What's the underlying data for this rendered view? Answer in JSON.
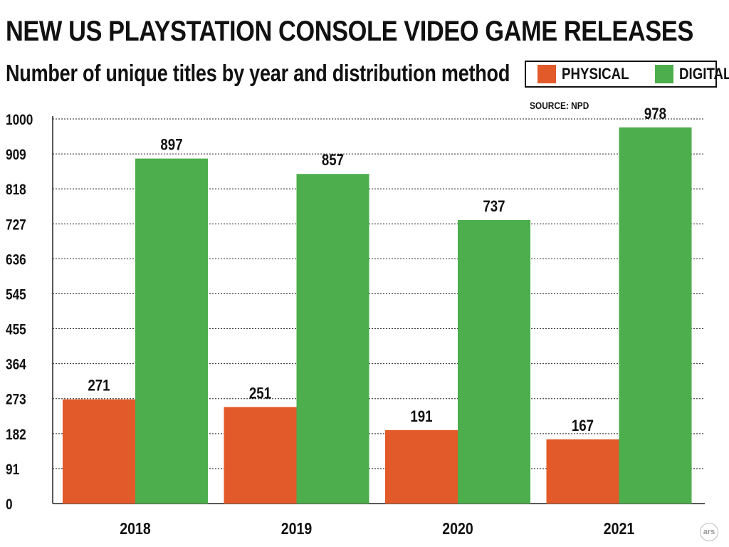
{
  "header": {
    "title": "NEW US PLAYSTATION CONSOLE VIDEO GAME RELEASES",
    "subtitle": "Number of unique titles by year and distribution method",
    "source": "SOURCE: NPD"
  },
  "branding": {
    "watermark": "ars"
  },
  "colors": {
    "physical": "#e35a2a",
    "digital": "#4cae4c",
    "grid": "#222222"
  },
  "chart_data": {
    "type": "bar",
    "title": "NEW US PLAYSTATION CONSOLE VIDEO GAME RELEASES",
    "subtitle": "Number of unique titles by year and distribution method",
    "categories": [
      "2018",
      "2019",
      "2020",
      "2021"
    ],
    "series": [
      {
        "name": "PHYSICAL",
        "values": [
          271,
          251,
          191,
          167
        ]
      },
      {
        "name": "DIGITAL",
        "values": [
          897,
          857,
          737,
          978
        ]
      }
    ],
    "xlabel": "",
    "ylabel": "",
    "ylim": [
      0,
      1000
    ],
    "yticks": [
      "0",
      "91",
      "182",
      "273",
      "364",
      "455",
      "545",
      "636",
      "727",
      "818",
      "909",
      "1000"
    ],
    "grid": true,
    "legend_position": "top-right",
    "data_labels": true
  }
}
